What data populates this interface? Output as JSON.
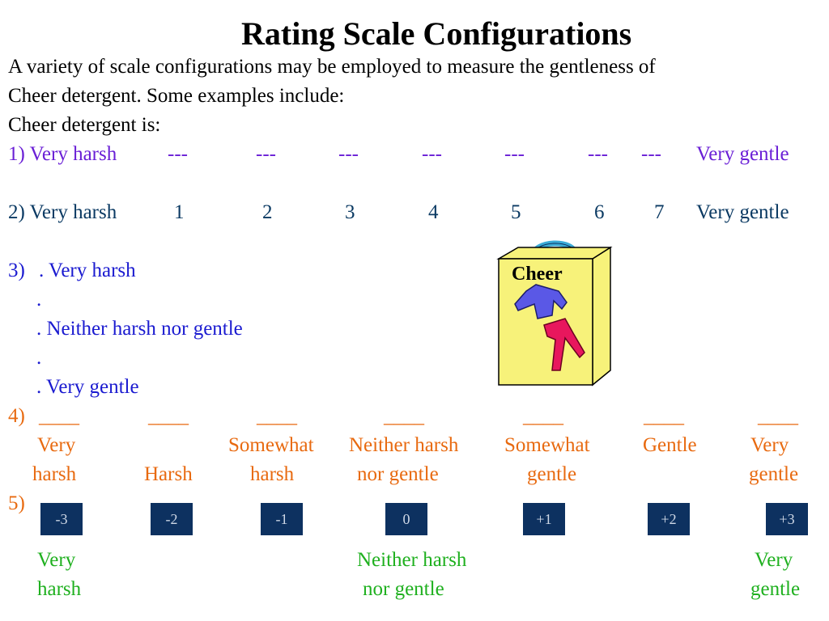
{
  "title": "Rating Scale Configurations",
  "intro": {
    "line1": "A variety of scale configurations may be employed to measure the gentleness of",
    "line2": "Cheer detergent. Some examples include:",
    "line3": "Cheer detergent is:"
  },
  "scale1": {
    "left": "1) Very harsh",
    "marks": [
      "---",
      "---",
      "---",
      "---",
      "---",
      "---",
      "---"
    ],
    "right": "Very gentle",
    "color": "#6a1fd6"
  },
  "scale2": {
    "left": "2) Very harsh",
    "numbers": [
      "1",
      "2",
      "3",
      "4",
      "5",
      "6",
      "7"
    ],
    "right": "Very gentle",
    "color": "#0b3a63"
  },
  "scale3": {
    "prefix": "3)",
    "lines": [
      ". Very harsh",
      ".",
      ".  Neither harsh nor gentle",
      ".",
      ".  Very gentle"
    ],
    "color": "#1a1ad0"
  },
  "scale4": {
    "prefix": "4)",
    "blank": "____",
    "labels": [
      {
        "l1": "Very",
        "l2": "harsh"
      },
      {
        "l1": "",
        "l2": "Harsh"
      },
      {
        "l1": "Somewhat",
        "l2": "harsh"
      },
      {
        "l1": "Neither harsh",
        "l2": "nor gentle"
      },
      {
        "l1": "Somewhat",
        "l2": "gentle"
      },
      {
        "l1": "Gentle",
        "l2": ""
      },
      {
        "l1": "Very",
        "l2": "gentle"
      }
    ],
    "color": "#e86a10"
  },
  "scale5": {
    "prefix": "5)",
    "boxes": [
      "-3",
      "-2",
      "-1",
      "0",
      "+1",
      "+2",
      "+3"
    ],
    "labels": [
      {
        "l1": "Very",
        "l2": "harsh"
      },
      {
        "l1": "Neither harsh",
        "l2": "nor gentle"
      },
      {
        "l1": "Very",
        "l2": "gentle"
      }
    ],
    "color": "#1fb01f",
    "box_color": "#0d3160"
  },
  "illustration": {
    "box_label": "Cheer",
    "icon": "detergent-box-icon",
    "colors": {
      "box": "#f7f27a",
      "shirt": "#5a58e6",
      "pants": "#e8175d",
      "handle": "#3aaad6"
    }
  }
}
